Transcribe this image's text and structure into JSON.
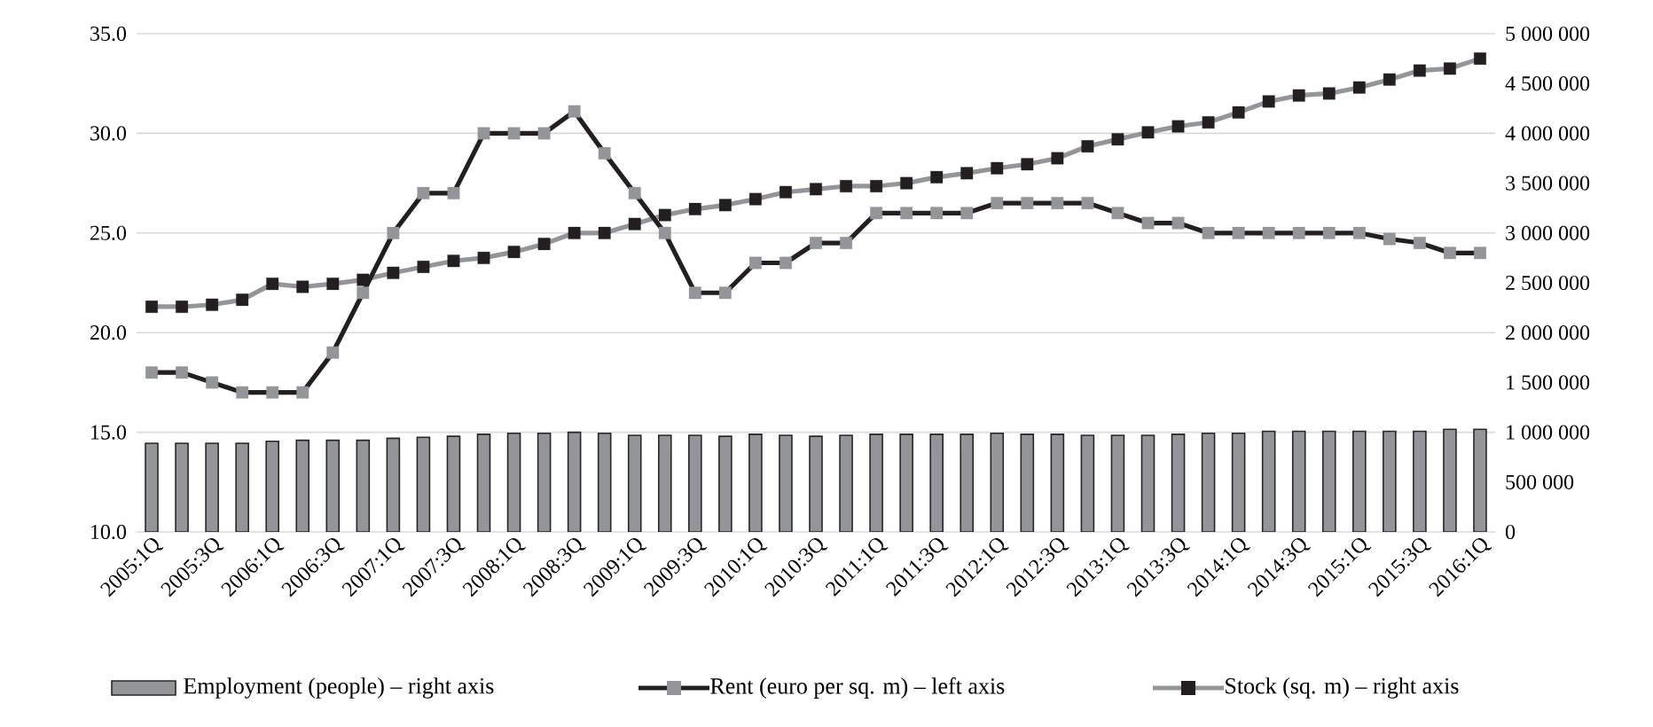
{
  "chart_data": {
    "type": "line",
    "categories": [
      "2005:1Q",
      null,
      "2005:3Q",
      null,
      "2006:1Q",
      null,
      "2006:3Q",
      null,
      "2007:1Q",
      null,
      "2007:3Q",
      null,
      "2008:1Q",
      null,
      "2008:3Q",
      null,
      "2009:1Q",
      null,
      "2009:3Q",
      null,
      "2010:1Q",
      null,
      "2010:3Q",
      null,
      "2011:1Q",
      null,
      "2011:3Q",
      null,
      "2012:1Q",
      null,
      "2012:3Q",
      null,
      "2013:1Q",
      null,
      "2013:3Q",
      null,
      "2014:1Q",
      null,
      "2014:3Q",
      null,
      "2015:1Q",
      null,
      "2015:3Q",
      null,
      "2016:1Q"
    ],
    "series": [
      {
        "name": "Employment (people) – right axis",
        "type": "bar",
        "axis": "y2",
        "color": "#939598",
        "values": [
          890000,
          890000,
          890000,
          890000,
          910000,
          920000,
          920000,
          920000,
          940000,
          950000,
          960000,
          980000,
          990000,
          990000,
          1000000,
          990000,
          970000,
          970000,
          970000,
          960000,
          980000,
          970000,
          960000,
          970000,
          980000,
          980000,
          980000,
          980000,
          990000,
          980000,
          980000,
          970000,
          970000,
          970000,
          980000,
          990000,
          990000,
          1010000,
          1010000,
          1010000,
          1010000,
          1010000,
          1010000,
          1030000,
          1030000
        ]
      },
      {
        "name": "Rent (euro per sq. m) – left axis",
        "color": "#231f20",
        "values": [
          18,
          18,
          17.5,
          17,
          17,
          17,
          19,
          22,
          25,
          27,
          27,
          30,
          30,
          30,
          31.1,
          29,
          27,
          25,
          22,
          22,
          23.5,
          23.5,
          24.5,
          24.5,
          26,
          26,
          26,
          26,
          26.5,
          26.5,
          26.5,
          26.5,
          26,
          25.5,
          25.5,
          25,
          25,
          25,
          25,
          25,
          25,
          24.7,
          24.5,
          24,
          24
        ]
      },
      {
        "name": "Stock (sq. m) – right axis",
        "type": "line",
        "axis": "y2",
        "color": "#939598",
        "values": [
          2260000,
          2260000,
          2280000,
          2330000,
          2490000,
          2460000,
          2490000,
          2530000,
          2600000,
          2660000,
          2720000,
          2750000,
          2810000,
          2890000,
          3000000,
          3000000,
          3090000,
          3180000,
          3240000,
          3280000,
          3340000,
          3410000,
          3440000,
          3470000,
          3470000,
          3500000,
          3560000,
          3600000,
          3650000,
          3690000,
          3750000,
          3870000,
          3940000,
          4010000,
          4070000,
          4110000,
          4210000,
          4320000,
          4380000,
          4400000,
          4460000,
          4540000,
          4630000,
          4650000,
          4750000
        ]
      }
    ],
    "ylim": [
      10,
      35
    ],
    "yticks": [
      {
        "value": 10,
        "label": "10.0"
      },
      {
        "value": 15,
        "label": "15.0"
      },
      {
        "value": 20,
        "label": "20.0"
      },
      {
        "value": 25,
        "label": "25.0"
      },
      {
        "value": 30,
        "label": "30.0"
      },
      {
        "value": 35,
        "label": "35.0"
      }
    ],
    "y2lim": [
      0,
      5000000
    ],
    "y2ticks": [
      0,
      {
        "value": 500000,
        "label": "500 000"
      },
      {
        "value": 1000000,
        "label": "1 000 000"
      },
      {
        "value": 1500000,
        "label": "1 500 000"
      },
      {
        "value": 2000000,
        "label": "2 000 000"
      },
      {
        "value": 2500000,
        "label": "2 500 000"
      },
      {
        "value": 3000000,
        "label": "3 000 000"
      },
      {
        "value": 3500000,
        "label": "3 500 000"
      },
      {
        "value": 4000000,
        "label": "4 000 000"
      },
      {
        "value": 4500000,
        "label": "4 500 000"
      },
      {
        "value": 5000000,
        "label": "5 000 000"
      }
    ],
    "grid": "y",
    "legend": "bottom",
    "marker": "square"
  }
}
